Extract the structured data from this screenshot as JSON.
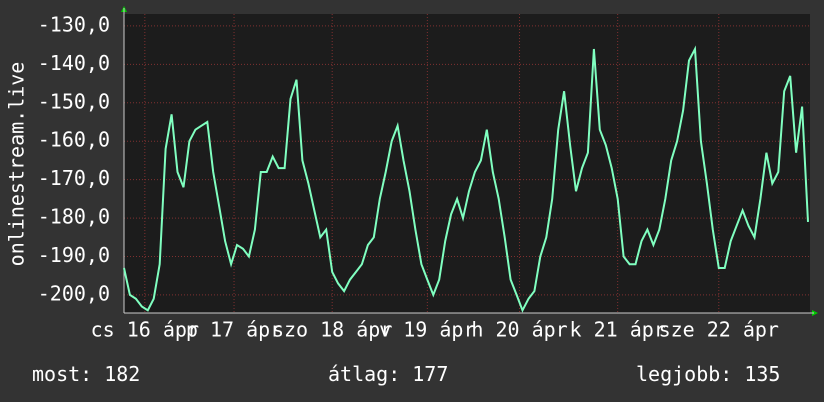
{
  "chart_data": {
    "type": "line",
    "y_label": "onlinestream.live",
    "ylim": [
      -204.7,
      -126.9
    ],
    "yticks": [
      {
        "value": -130,
        "label": "-130,0"
      },
      {
        "value": -140,
        "label": "-140,0"
      },
      {
        "value": -150,
        "label": "-150,0"
      },
      {
        "value": -160,
        "label": "-160,0"
      },
      {
        "value": -170,
        "label": "-170,0"
      },
      {
        "value": -180,
        "label": "-180,0"
      },
      {
        "value": -190,
        "label": "-190,0"
      },
      {
        "value": -200,
        "label": "-200,0"
      }
    ],
    "xlim": [
      0,
      115
    ],
    "xticks": [
      {
        "value": 3.5,
        "label": "cs 16 ápr"
      },
      {
        "value": 18.5,
        "label": "p 17 ápr"
      },
      {
        "value": 35,
        "label": "szo 18 ápr"
      },
      {
        "value": 51,
        "label": "v 19 ápr"
      },
      {
        "value": 66.5,
        "label": "h 20 ápr"
      },
      {
        "value": 83,
        "label": "k 21 ápr"
      },
      {
        "value": 100,
        "label": "sze 22 ápr"
      }
    ],
    "grid": true,
    "series": [
      {
        "color": "#80ffc0",
        "values": [
          -193,
          -200,
          -201,
          -203,
          -204,
          -201,
          -192,
          -162,
          -153,
          -168,
          -172,
          -160,
          -157,
          -156,
          -155,
          -168,
          -177,
          -186,
          -192,
          -187,
          -188,
          -190,
          -183,
          -168,
          -168,
          -164,
          -167,
          -167,
          -149,
          -144,
          -165,
          -171,
          -178,
          -185,
          -183,
          -194,
          -197,
          -199,
          -196,
          -194,
          -192,
          -187,
          -185,
          -175,
          -168,
          -160,
          -156,
          -165,
          -173,
          -183,
          -192,
          -196,
          -200,
          -196,
          -186,
          -179,
          -175,
          -180,
          -173,
          -168,
          -165,
          -157,
          -168,
          -175,
          -185,
          -196,
          -200,
          -204,
          -201,
          -199,
          -190,
          -185,
          -175,
          -157,
          -147,
          -161,
          -173,
          -167,
          -163,
          -136,
          -157,
          -161,
          -167,
          -175,
          -190,
          -192,
          -192,
          -186,
          -183,
          -187,
          -183,
          -175,
          -165,
          -160,
          -152,
          -139,
          -136,
          -160,
          -171,
          -183,
          -193,
          -193,
          -186,
          -182,
          -178,
          -182,
          -185,
          -175,
          -163,
          -171,
          -168,
          -147,
          -143,
          -163,
          -151,
          -181
        ]
      }
    ],
    "stats": [
      {
        "label": "most:",
        "value": 182
      },
      {
        "label": "átlag:",
        "value": 177
      },
      {
        "label": "legjobb:",
        "value": 135
      }
    ]
  }
}
